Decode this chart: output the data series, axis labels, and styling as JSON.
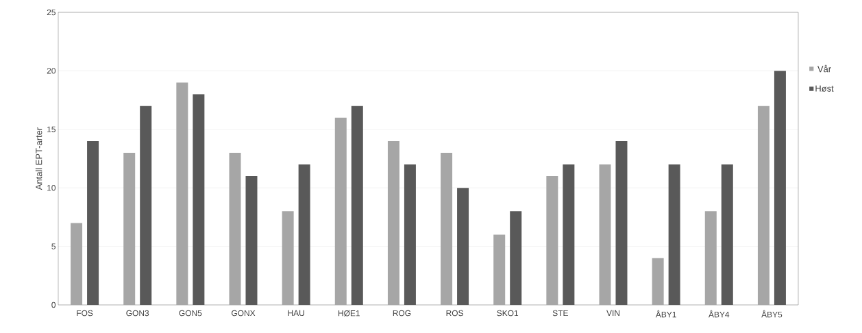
{
  "chart_data": {
    "type": "bar",
    "ylabel": "Antall EPT-arter",
    "categories": [
      "FOS",
      "GON3",
      "GON5",
      "GONX",
      "HAU",
      "HØE1",
      "ROG",
      "ROS",
      "SKO1",
      "STE",
      "VIN",
      "ÅBY1",
      "ÅBY4",
      "ÅBY5"
    ],
    "series": [
      {
        "name": "Vår",
        "color": "#a6a6a6",
        "values": [
          7,
          13,
          19,
          13,
          8,
          16,
          14,
          13,
          6,
          11,
          12,
          4,
          8,
          17
        ]
      },
      {
        "name": "Høst",
        "color": "#595959",
        "values": [
          14,
          17,
          18,
          11,
          12,
          17,
          12,
          10,
          8,
          12,
          14,
          12,
          12,
          20
        ]
      }
    ],
    "ylim": [
      0,
      25
    ],
    "yticks": [
      0,
      5,
      10,
      15,
      20,
      25
    ],
    "grid": "y",
    "legend": "right"
  }
}
